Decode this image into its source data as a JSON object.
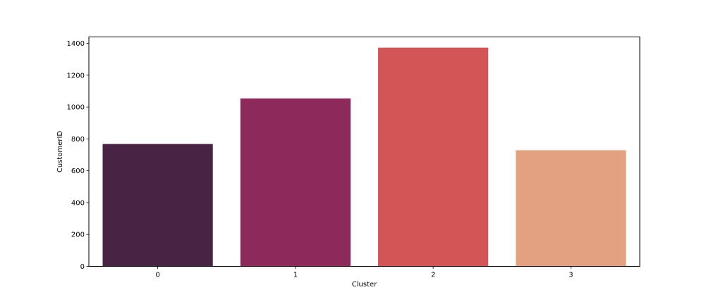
{
  "chart_data": {
    "type": "bar",
    "title": "",
    "xlabel": "Cluster",
    "ylabel": "CustomerID",
    "categories": [
      "0",
      "1",
      "2",
      "3"
    ],
    "values": [
      768,
      1054,
      1373,
      729
    ],
    "ylim": [
      0,
      1440
    ],
    "yticks": [
      0,
      200,
      400,
      600,
      800,
      1000,
      1200,
      1400
    ],
    "grid": false,
    "colors": [
      "#482344",
      "#8e2a5b",
      "#d35556",
      "#e3a182"
    ]
  }
}
